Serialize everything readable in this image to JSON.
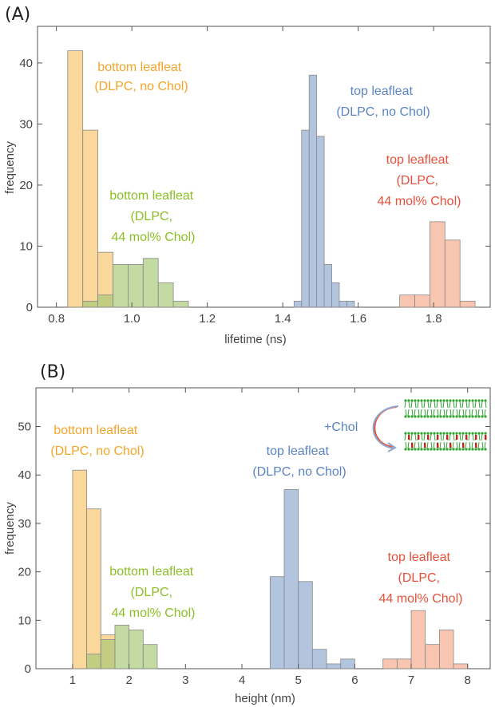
{
  "chart_data": [
    {
      "panel_label": "(A)",
      "type": "histogram",
      "xlabel": "lifetime (ns)",
      "ylabel": "frequency",
      "xlim": [
        0.75,
        1.95
      ],
      "ylim": [
        0,
        46
      ],
      "xticks": [
        0.8,
        1.0,
        1.2,
        1.4,
        1.6,
        1.8
      ],
      "xtick_labels": [
        "0.8",
        "1.0",
        "1.2",
        "1.4",
        "1.6",
        "1.8"
      ],
      "yticks": [
        0,
        10,
        20,
        30,
        40
      ],
      "ytick_labels": [
        "0",
        "10",
        "20",
        "30",
        "40"
      ],
      "series": [
        {
          "name": "bottom leafleat (DLPC, no Chol)",
          "color": "#f8c46a",
          "bins": [
            [
              0.83,
              0.87,
              42
            ],
            [
              0.87,
              0.91,
              29
            ],
            [
              0.91,
              0.95,
              9
            ]
          ]
        },
        {
          "name": "bottom leafleat (DLPC, 44 mol% Chol)",
          "color": "#a8c878",
          "bins": [
            [
              0.87,
              0.91,
              1
            ],
            [
              0.91,
              0.95,
              2
            ],
            [
              0.95,
              0.99,
              7
            ],
            [
              0.99,
              1.03,
              7
            ],
            [
              1.03,
              1.07,
              8
            ],
            [
              1.07,
              1.11,
              4
            ],
            [
              1.11,
              1.15,
              1
            ]
          ]
        },
        {
          "name": "top leafleat (DLPC, no Chol)",
          "color": "#8fa8d0",
          "bins": [
            [
              1.43,
              1.45,
              1
            ],
            [
              1.45,
              1.47,
              29
            ],
            [
              1.47,
              1.49,
              38
            ],
            [
              1.49,
              1.51,
              28
            ],
            [
              1.51,
              1.53,
              7
            ],
            [
              1.53,
              1.55,
              4
            ],
            [
              1.55,
              1.57,
              1
            ],
            [
              1.57,
              1.59,
              1
            ]
          ]
        },
        {
          "name": "top leafleat (DLPC, 44 mol% Chol)",
          "color": "#f4a98c",
          "bins": [
            [
              1.71,
              1.75,
              2
            ],
            [
              1.75,
              1.79,
              2
            ],
            [
              1.79,
              1.83,
              14
            ],
            [
              1.83,
              1.87,
              11
            ],
            [
              1.87,
              1.91,
              1
            ]
          ]
        }
      ],
      "annotations": [
        {
          "lines": [
            "bottom leafleat",
            "(DLPC, no Chol)"
          ],
          "color": "#f4a428"
        },
        {
          "lines": [
            "top leafleat",
            "(DLPC, no Chol)"
          ],
          "color": "#5b84c4"
        },
        {
          "lines": [
            "top leafleat",
            "(DLPC,",
            "44 mol% Chol)"
          ],
          "color": "#e8503a"
        },
        {
          "lines": [
            "bottom leafleat",
            "(DLPC,",
            "44 mol% Chol)"
          ],
          "color": "#8cbf26"
        }
      ]
    },
    {
      "panel_label": "(B)",
      "type": "histogram",
      "xlabel": "height (nm)",
      "ylabel": "frequency",
      "xlim": [
        0.35,
        8.4
      ],
      "ylim": [
        0,
        58
      ],
      "xticks": [
        1,
        2,
        3,
        4,
        5,
        6,
        7,
        8
      ],
      "xtick_labels": [
        "1",
        "2",
        "3",
        "4",
        "5",
        "6",
        "7",
        "8"
      ],
      "yticks": [
        0,
        10,
        20,
        30,
        40,
        50
      ],
      "ytick_labels": [
        "0",
        "10",
        "20",
        "30",
        "40",
        "50"
      ],
      "series": [
        {
          "name": "bottom leafleat (DLPC, no Chol)",
          "color": "#f8c46a",
          "bins": [
            [
              1.0,
              1.25,
              41
            ],
            [
              1.25,
              1.5,
              33
            ],
            [
              1.5,
              1.75,
              7
            ]
          ]
        },
        {
          "name": "bottom leafleat (DLPC, 44 mol% Chol)",
          "color": "#a8c878",
          "bins": [
            [
              1.25,
              1.5,
              3
            ],
            [
              1.5,
              1.75,
              6
            ],
            [
              1.75,
              2.0,
              9
            ],
            [
              2.0,
              2.25,
              8
            ],
            [
              2.25,
              2.5,
              5
            ]
          ]
        },
        {
          "name": "top leafleat (DLPC, no Chol)",
          "color": "#8fa8d0",
          "bins": [
            [
              4.5,
              4.75,
              19
            ],
            [
              4.75,
              5.0,
              37
            ],
            [
              5.0,
              5.25,
              18
            ],
            [
              5.25,
              5.5,
              4
            ],
            [
              5.5,
              5.75,
              1
            ],
            [
              5.75,
              6.0,
              2
            ]
          ]
        },
        {
          "name": "top leafleat (DLPC, 44 mol% Chol)",
          "color": "#f4a98c",
          "bins": [
            [
              6.5,
              6.75,
              2
            ],
            [
              6.75,
              7.0,
              2
            ],
            [
              7.0,
              7.25,
              12
            ],
            [
              7.25,
              7.5,
              5
            ],
            [
              7.5,
              7.75,
              8
            ],
            [
              7.75,
              8.0,
              1
            ]
          ]
        }
      ],
      "annotations": [
        {
          "lines": [
            "bottom leafleat",
            "(DLPC, no Chol)"
          ],
          "color": "#f4a428"
        },
        {
          "lines": [
            "top leafleat",
            "(DLPC, no Chol)"
          ],
          "color": "#5b84c4"
        },
        {
          "lines": [
            "top leafleat",
            "(DLPC,",
            "44 mol% Chol)"
          ],
          "color": "#e8503a"
        },
        {
          "lines": [
            "bottom leafleat",
            "(DLPC,",
            "44 mol% Chol)"
          ],
          "color": "#8cbf26"
        },
        {
          "lines": [
            "+Chol"
          ],
          "color": "#5b84c4"
        }
      ]
    }
  ]
}
